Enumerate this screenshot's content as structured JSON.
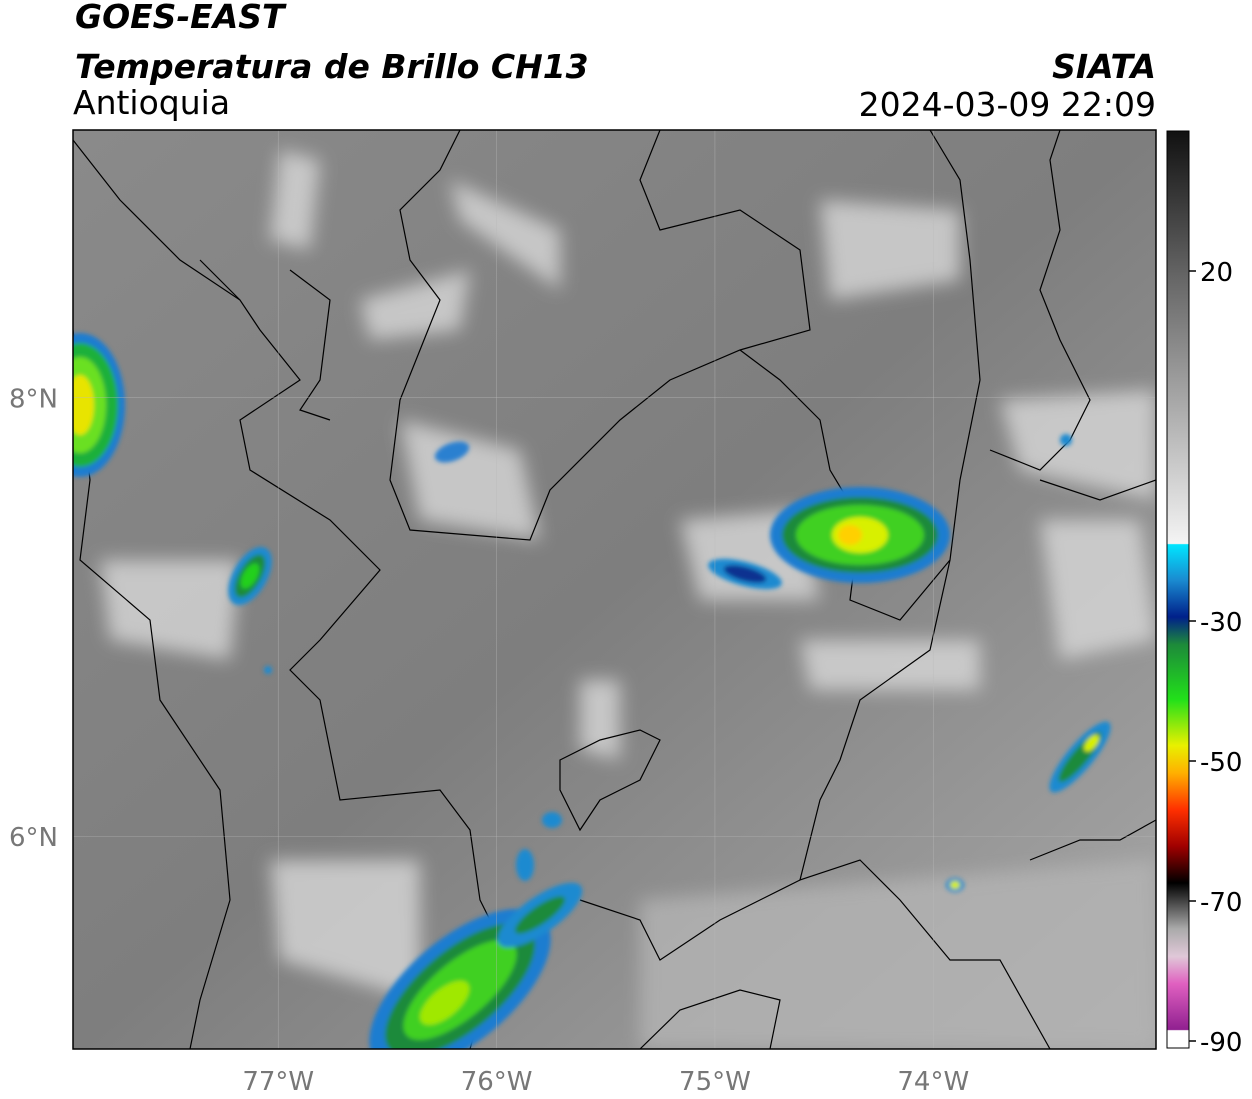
{
  "header": {
    "title": "GOES-EAST",
    "subtitle": "Temperatura de Brillo CH13",
    "region": "Antioquia",
    "source": "SIATA",
    "datetime": "2024-03-09 22:09"
  },
  "map": {
    "lonlim": [
      -77.94,
      -72.98
    ],
    "latlim": [
      5.03,
      9.22
    ],
    "lon_ticks": [
      {
        "value": -77,
        "label": "77°W"
      },
      {
        "value": -76,
        "label": "76°W"
      },
      {
        "value": -75,
        "label": "75°W"
      },
      {
        "value": -74,
        "label": "74°W"
      }
    ],
    "lat_ticks": [
      {
        "value": 8,
        "label": "8°N"
      },
      {
        "value": 6,
        "label": "6°N"
      }
    ]
  },
  "colorbar": {
    "lim": [
      -91,
      40
    ],
    "ticks": [
      20,
      -30,
      -50,
      -70,
      -90
    ]
  }
}
